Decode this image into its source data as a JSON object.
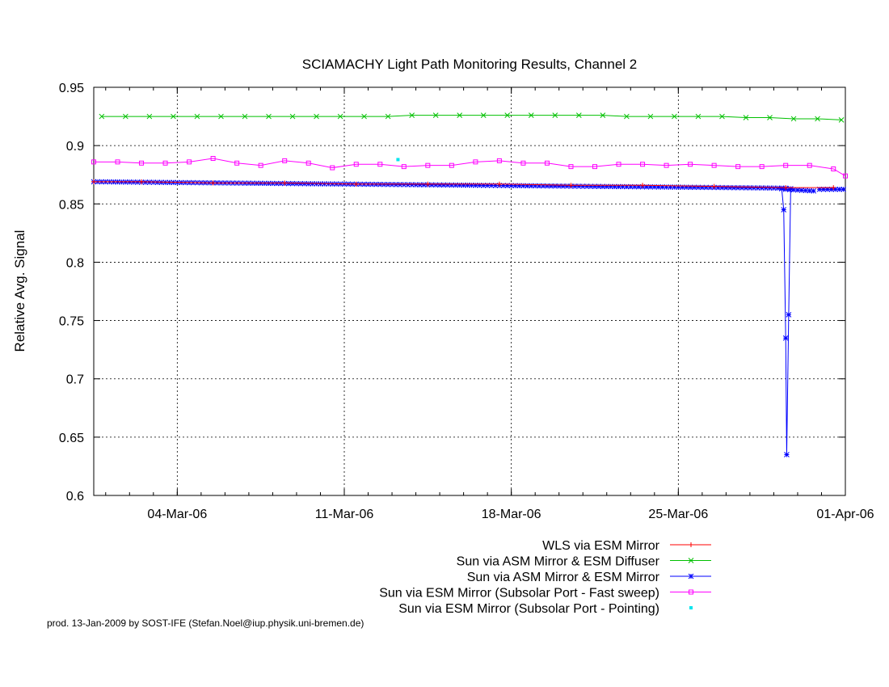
{
  "chart_data": {
    "type": "line",
    "title": "SCIAMACHY Light Path Monitoring Results, Channel 2",
    "xlabel": "",
    "ylabel": "Relative Avg. Signal",
    "ylim": [
      0.6,
      0.95
    ],
    "xlim": [
      "2006-02-28T12:00",
      "2006-04-01T00:00"
    ],
    "x_ticks": [
      "04-Mar-06",
      "11-Mar-06",
      "18-Mar-06",
      "25-Mar-06",
      "01-Apr-06"
    ],
    "x_tick_dates": [
      "2006-03-04",
      "2006-03-11",
      "2006-03-18",
      "2006-03-25",
      "2006-04-01"
    ],
    "y_ticks": [
      "0.6",
      "0.65",
      "0.7",
      "0.75",
      "0.8",
      "0.85",
      "0.9",
      "0.95"
    ],
    "y_tick_values": [
      0.6,
      0.65,
      0.7,
      0.75,
      0.8,
      0.85,
      0.9,
      0.95
    ],
    "grid": true,
    "legend_position": "bottom-right",
    "series": [
      {
        "name": "WLS via ESM Mirror",
        "color": "#ff0000",
        "marker": "plus",
        "style": "linespoints",
        "points": [
          [
            "2006-02-28T12:00",
            0.869
          ],
          [
            "2006-03-02T12:00",
            0.869
          ],
          [
            "2006-03-05T12:00",
            0.868
          ],
          [
            "2006-03-08T12:00",
            0.868
          ],
          [
            "2006-03-11T12:00",
            0.867
          ],
          [
            "2006-03-14T12:00",
            0.867
          ],
          [
            "2006-03-17T12:00",
            0.867
          ],
          [
            "2006-03-20T12:00",
            0.866
          ],
          [
            "2006-03-23T12:00",
            0.866
          ],
          [
            "2006-03-26T12:00",
            0.865
          ],
          [
            "2006-03-29T12:00",
            0.864
          ],
          [
            "2006-03-31T12:00",
            0.864
          ]
        ]
      },
      {
        "name": "Sun via ASM Mirror & ESM Diffuser",
        "color": "#00c000",
        "marker": "cross",
        "style": "linespoints",
        "points": [
          [
            "2006-02-28T20:00",
            0.925
          ],
          [
            "2006-03-01T20:00",
            0.925
          ],
          [
            "2006-03-02T20:00",
            0.925
          ],
          [
            "2006-03-03T20:00",
            0.925
          ],
          [
            "2006-03-04T20:00",
            0.925
          ],
          [
            "2006-03-05T20:00",
            0.925
          ],
          [
            "2006-03-06T20:00",
            0.925
          ],
          [
            "2006-03-07T20:00",
            0.925
          ],
          [
            "2006-03-08T20:00",
            0.925
          ],
          [
            "2006-03-09T20:00",
            0.925
          ],
          [
            "2006-03-10T20:00",
            0.925
          ],
          [
            "2006-03-11T20:00",
            0.925
          ],
          [
            "2006-03-12T20:00",
            0.925
          ],
          [
            "2006-03-13T20:00",
            0.926
          ],
          [
            "2006-03-14T20:00",
            0.926
          ],
          [
            "2006-03-15T20:00",
            0.926
          ],
          [
            "2006-03-16T20:00",
            0.926
          ],
          [
            "2006-03-17T20:00",
            0.926
          ],
          [
            "2006-03-18T20:00",
            0.926
          ],
          [
            "2006-03-19T20:00",
            0.926
          ],
          [
            "2006-03-20T20:00",
            0.926
          ],
          [
            "2006-03-21T20:00",
            0.926
          ],
          [
            "2006-03-22T20:00",
            0.925
          ],
          [
            "2006-03-23T20:00",
            0.925
          ],
          [
            "2006-03-24T20:00",
            0.925
          ],
          [
            "2006-03-25T20:00",
            0.925
          ],
          [
            "2006-03-26T20:00",
            0.925
          ],
          [
            "2006-03-27T20:00",
            0.924
          ],
          [
            "2006-03-28T20:00",
            0.924
          ],
          [
            "2006-03-29T20:00",
            0.923
          ],
          [
            "2006-03-30T20:00",
            0.923
          ],
          [
            "2006-03-31T20:00",
            0.922
          ]
        ]
      },
      {
        "name": "Sun via ASM Mirror & ESM Mirror",
        "color": "#0000ff",
        "marker": "star",
        "style": "linespoints-dense",
        "segments": [
          {
            "from": "2006-02-28T12:00",
            "to": "2006-03-29T12:00",
            "y_start": 0.869,
            "y_end": 0.8635,
            "step_hours": 4
          },
          {
            "from": "2006-03-29T12:00",
            "to": "2006-03-30T18:00",
            "y_start": 0.8625,
            "y_end": 0.861,
            "step_hours": 4
          },
          {
            "from": "2006-03-30T22:00",
            "to": "2006-04-01T00:00",
            "y_start": 0.8625,
            "y_end": 0.8625,
            "step_hours": 4
          }
        ],
        "drop_points": [
          [
            "2006-03-29T08:00",
            0.863
          ],
          [
            "2006-03-29T10:00",
            0.845
          ],
          [
            "2006-03-29T12:00",
            0.735
          ],
          [
            "2006-03-29T13:00",
            0.635
          ],
          [
            "2006-03-29T15:00",
            0.755
          ],
          [
            "2006-03-29T17:00",
            0.863
          ]
        ]
      },
      {
        "name": "Sun via ESM Mirror (Subsolar Port - Fast sweep)",
        "color": "#ff00ff",
        "marker": "square",
        "style": "linespoints",
        "points": [
          [
            "2006-02-28T12:00",
            0.886
          ],
          [
            "2006-03-01T12:00",
            0.886
          ],
          [
            "2006-03-02T12:00",
            0.885
          ],
          [
            "2006-03-03T12:00",
            0.885
          ],
          [
            "2006-03-04T12:00",
            0.886
          ],
          [
            "2006-03-05T12:00",
            0.889
          ],
          [
            "2006-03-06T12:00",
            0.885
          ],
          [
            "2006-03-07T12:00",
            0.883
          ],
          [
            "2006-03-08T12:00",
            0.887
          ],
          [
            "2006-03-09T12:00",
            0.885
          ],
          [
            "2006-03-10T12:00",
            0.881
          ],
          [
            "2006-03-11T12:00",
            0.884
          ],
          [
            "2006-03-12T12:00",
            0.884
          ],
          [
            "2006-03-13T12:00",
            0.882
          ],
          [
            "2006-03-14T12:00",
            0.883
          ],
          [
            "2006-03-15T12:00",
            0.883
          ],
          [
            "2006-03-16T12:00",
            0.886
          ],
          [
            "2006-03-17T12:00",
            0.887
          ],
          [
            "2006-03-18T12:00",
            0.885
          ],
          [
            "2006-03-19T12:00",
            0.885
          ],
          [
            "2006-03-20T12:00",
            0.882
          ],
          [
            "2006-03-21T12:00",
            0.882
          ],
          [
            "2006-03-22T12:00",
            0.884
          ],
          [
            "2006-03-23T12:00",
            0.884
          ],
          [
            "2006-03-24T12:00",
            0.883
          ],
          [
            "2006-03-25T12:00",
            0.884
          ],
          [
            "2006-03-26T12:00",
            0.883
          ],
          [
            "2006-03-27T12:00",
            0.882
          ],
          [
            "2006-03-28T12:00",
            0.882
          ],
          [
            "2006-03-29T12:00",
            0.883
          ],
          [
            "2006-03-30T12:00",
            0.883
          ],
          [
            "2006-03-31T12:00",
            0.88
          ],
          [
            "2006-04-01T00:00",
            0.874
          ]
        ]
      },
      {
        "name": "Sun via ESM Mirror (Subsolar Port - Pointing)",
        "color": "#00e5ee",
        "marker": "dot",
        "style": "points",
        "points": [
          [
            "2006-03-13T06:00",
            0.888
          ]
        ]
      }
    ],
    "footer": "prod. 13-Jan-2009 by SOST-IFE (Stefan.Noel@iup.physik.uni-bremen.de)"
  }
}
